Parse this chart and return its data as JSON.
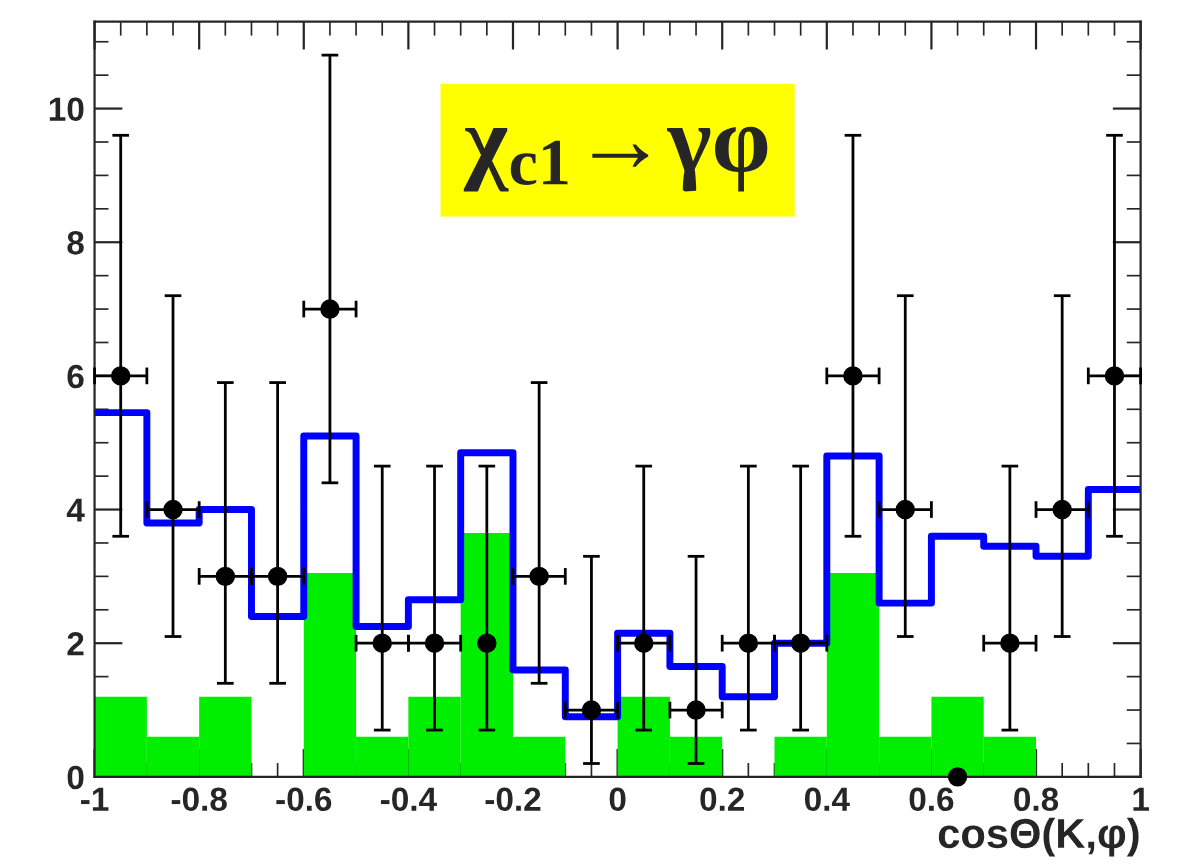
{
  "chart_data": {
    "type": "histogram",
    "title": "χ$_{c1}$→γφ",
    "xlabel": "cosΘ(K,φ)",
    "bins": [
      -1,
      -0.9,
      -0.8,
      -0.7,
      -0.6,
      -0.5,
      -0.4,
      -0.3,
      -0.2,
      -0.1,
      0,
      0.1,
      0.2,
      0.3,
      0.4,
      0.5,
      0.6,
      0.7,
      0.8,
      0.9,
      1
    ],
    "series": [
      {
        "color": "#00ee00",
        "values": [
          1.2,
          0.6,
          1.2,
          0,
          3.05,
          0.6,
          1.2,
          3.65,
          0.6,
          0,
          1.2,
          0.6,
          0,
          0.6,
          3.05,
          0.6,
          1.2,
          0.6,
          0,
          0
        ]
      },
      {
        "type": "step",
        "color": "#0000ff",
        "x": [
          -1,
          -0.9,
          -0.8,
          -0.7,
          -0.6,
          -0.5,
          -0.4,
          -0.3,
          -0.2,
          -0.1,
          0,
          0.1,
          0.2,
          0.3,
          0.4,
          0.5,
          0.6,
          0.7,
          0.8,
          0.9,
          1
        ],
        "values": [
          5.45,
          3.8,
          4.0,
          2.4,
          5.1,
          2.25,
          2.65,
          4.85,
          1.6,
          0.9,
          2.15,
          1.65,
          1.2,
          2.0,
          4.8,
          2.6,
          3.6,
          3.45,
          3.3,
          4.3,
          4.3
        ]
      },
      {
        "type": "scatter",
        "color": "#000000",
        "marker": "circle",
        "x": [
          -0.95,
          -0.85,
          -0.75,
          -0.65,
          -0.55,
          -0.45,
          -0.35,
          -0.25,
          -0.15,
          -0.05,
          0.05,
          0.15,
          0.25,
          0.35,
          0.45,
          0.55,
          0.65,
          0.75,
          0.85,
          0.95
        ],
        "values": [
          6,
          4,
          3,
          3,
          7,
          2,
          2,
          2,
          3,
          1,
          2,
          1,
          2,
          2,
          6,
          4,
          0,
          2,
          4,
          6
        ],
        "errors": [
          [
            3.6,
            9.6
          ],
          [
            2.1,
            7.2
          ],
          [
            1.4,
            5.9
          ],
          [
            1.4,
            5.9
          ],
          [
            4.4,
            10.8
          ],
          [
            0.7,
            4.65
          ],
          [
            0.7,
            4.65
          ],
          [
            0.7,
            4.65
          ],
          [
            1.4,
            5.9
          ],
          [
            0.2,
            3.3
          ],
          [
            0.7,
            4.65
          ],
          [
            0.2,
            3.3
          ],
          [
            0.7,
            4.65
          ],
          [
            0.7,
            4.65
          ],
          [
            3.6,
            9.6
          ],
          [
            2.1,
            7.2
          ],
          null,
          [
            0.7,
            4.65
          ],
          [
            2.1,
            7.2
          ],
          [
            3.6,
            9.6
          ]
        ],
        "xerrors": [
          0.05,
          0.05,
          0.05,
          0.05,
          0.05,
          0.05,
          0.05,
          null,
          0.05,
          0.05,
          0.05,
          0.05,
          0.05,
          0.05,
          0.05,
          0.05,
          null,
          0.05,
          0.05,
          0.05
        ]
      }
    ],
    "xlim": [
      -1,
      1
    ],
    "ylim": [
      0,
      11.3
    ],
    "xticks": [
      -1,
      -0.8,
      -0.6,
      -0.4,
      -0.2,
      0,
      0.2,
      0.4,
      0.6,
      0.8,
      1
    ],
    "yticks": [
      0,
      2,
      4,
      6,
      8,
      10
    ],
    "grid": false,
    "legend": false
  }
}
